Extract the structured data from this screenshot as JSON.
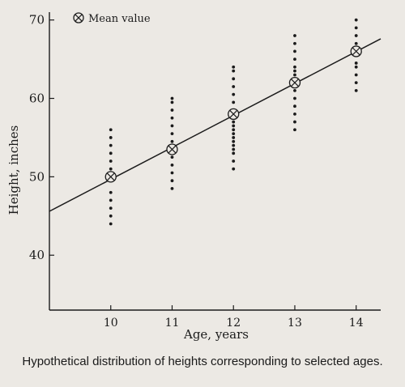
{
  "chart_data": {
    "type": "scatter",
    "title": "",
    "xlabel": "Age, years",
    "ylabel": "Height, inches",
    "xlim": [
      9.0,
      14.4
    ],
    "ylim": [
      33,
      71
    ],
    "x_ticks": [
      10,
      11,
      12,
      13,
      14
    ],
    "y_ticks": [
      40,
      50,
      60,
      70
    ],
    "grid": false,
    "legend": {
      "label": "Mean value",
      "placement": "top-left",
      "marker": "circled-x"
    },
    "series": [
      {
        "name": "",
        "x": [
          10,
          10,
          10,
          10,
          10,
          10,
          10,
          10,
          10,
          10,
          10,
          11,
          11,
          11,
          11,
          11,
          11,
          11,
          11,
          11,
          11,
          11,
          11,
          12,
          12,
          12,
          12,
          12,
          12,
          12,
          12,
          12,
          12,
          12,
          12,
          12,
          12,
          12,
          12,
          12,
          12,
          12,
          13,
          13,
          13,
          13,
          13,
          13,
          13,
          13,
          13,
          13,
          13,
          13,
          13,
          13,
          14,
          14,
          14,
          14,
          14,
          14,
          14,
          14,
          14,
          14
        ],
        "y": [
          44,
          45,
          46,
          47,
          48,
          51,
          52,
          53,
          54,
          55,
          56,
          48.5,
          49.5,
          50.5,
          51.5,
          52.5,
          54.5,
          55.5,
          56.5,
          57.5,
          58.5,
          59.5,
          60,
          51,
          52,
          53,
          54,
          55,
          56,
          57,
          58.5,
          59.5,
          60.5,
          61.5,
          62.5,
          63.5,
          64,
          54.5,
          55.5,
          56.5,
          57.5,
          53.5,
          56,
          57,
          58,
          59,
          60,
          61,
          63,
          64,
          65,
          66,
          67,
          62.5,
          63.5,
          68,
          61,
          62,
          63,
          64,
          64.5,
          66.5,
          67,
          68,
          69,
          70
        ]
      }
    ],
    "means": {
      "x": [
        10,
        11,
        12,
        13,
        14
      ],
      "y": [
        50,
        53.5,
        58,
        62,
        66
      ]
    },
    "regression_line": {
      "x": [
        9.0,
        14.4
      ],
      "y": [
        45.6,
        67.6
      ]
    }
  },
  "caption": "Hypothetical distribution of heights corresponding to selected ages."
}
